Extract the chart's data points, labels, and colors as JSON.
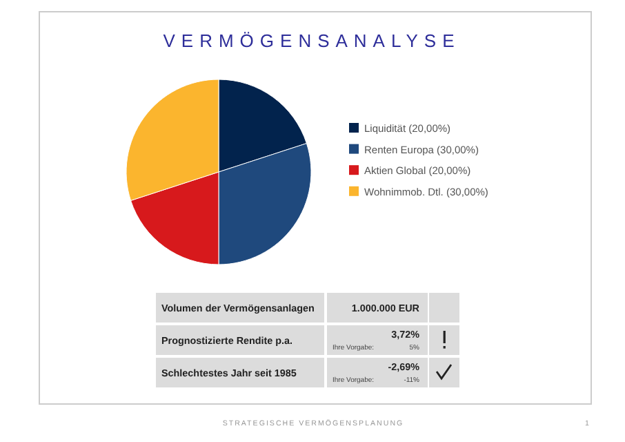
{
  "chart_data": {
    "type": "pie",
    "title": "VERMÖGENSANALYSE",
    "categories": [
      "Liquidität",
      "Renten Europa",
      "Aktien Global",
      "Wohnimmob. Dtl."
    ],
    "values": [
      20,
      30,
      20,
      30
    ],
    "colors": [
      "#02234d",
      "#1f497d",
      "#d7191c",
      "#fbb52e"
    ],
    "value_labels": [
      "(20,00%)",
      "(30,00%)",
      "(20,00%)",
      "(30,00%)"
    ],
    "legend": "right",
    "annotations": [
      "Volumen der Vermögensanlagen",
      "1.000.000 EUR",
      "Prognostizierte Rendite p.a.",
      "3,72%",
      "Ihre Vorgabe:",
      "5%",
      "Schlechtestes Jahr seit 1985",
      "-2,69%",
      "Ihre Vorgabe:",
      "-11%",
      "STRATEGISCHE VERMÖGENSPLANUNG",
      "1"
    ]
  }
}
